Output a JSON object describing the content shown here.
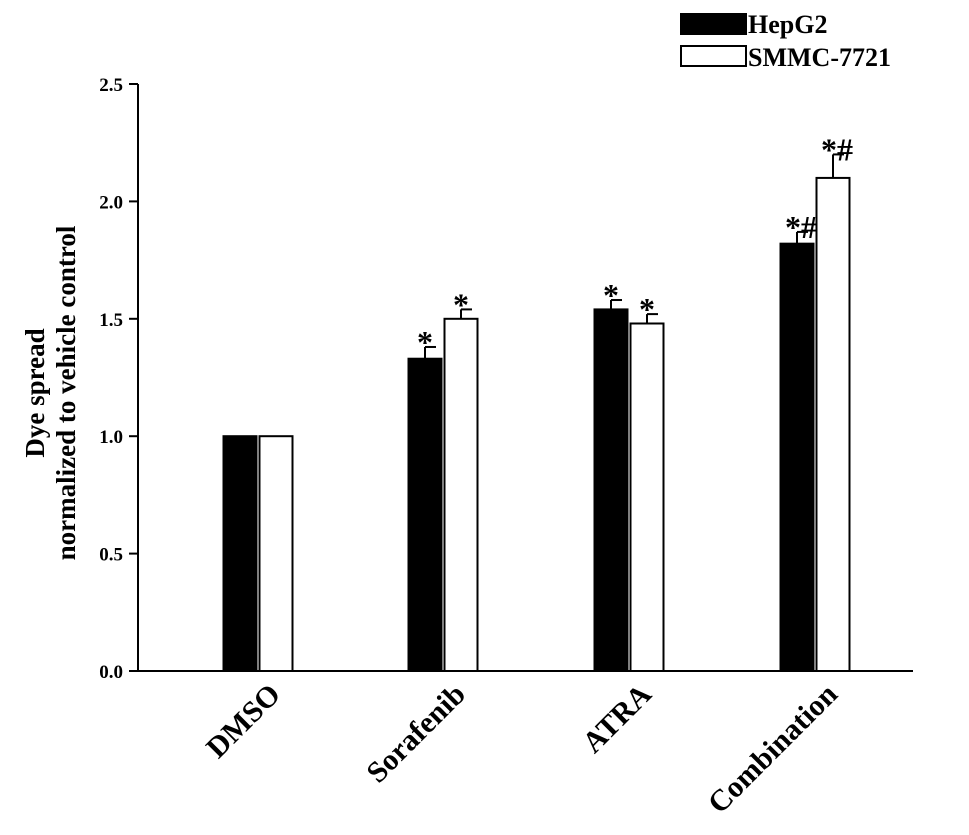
{
  "chart_data": {
    "type": "bar",
    "ylabel_line1": "Dye spread",
    "ylabel_line2": "normalized to vehicle control",
    "xlabel": "",
    "ylim": [
      0,
      2.5
    ],
    "yticks": [
      "0.0",
      "0.5",
      "1.0",
      "1.5",
      "2.0",
      "2.5"
    ],
    "categories": [
      "DMSO",
      "Sorafenib",
      "ATRA",
      "Combination"
    ],
    "series": [
      {
        "name": "HepG2",
        "color": "#000000",
        "values": [
          1.0,
          1.33,
          1.54,
          1.82
        ],
        "errors": [
          0.0,
          0.05,
          0.04,
          0.05
        ],
        "annotations": [
          "",
          "*",
          "*",
          "*#"
        ]
      },
      {
        "name": "SMMC-7721",
        "color": "#ffffff",
        "values": [
          1.0,
          1.5,
          1.48,
          2.1
        ],
        "errors": [
          0.0,
          0.04,
          0.04,
          0.1
        ],
        "annotations": [
          "",
          "*",
          "*",
          "*#"
        ]
      }
    ],
    "legend_position": "top-right",
    "grid": false
  }
}
